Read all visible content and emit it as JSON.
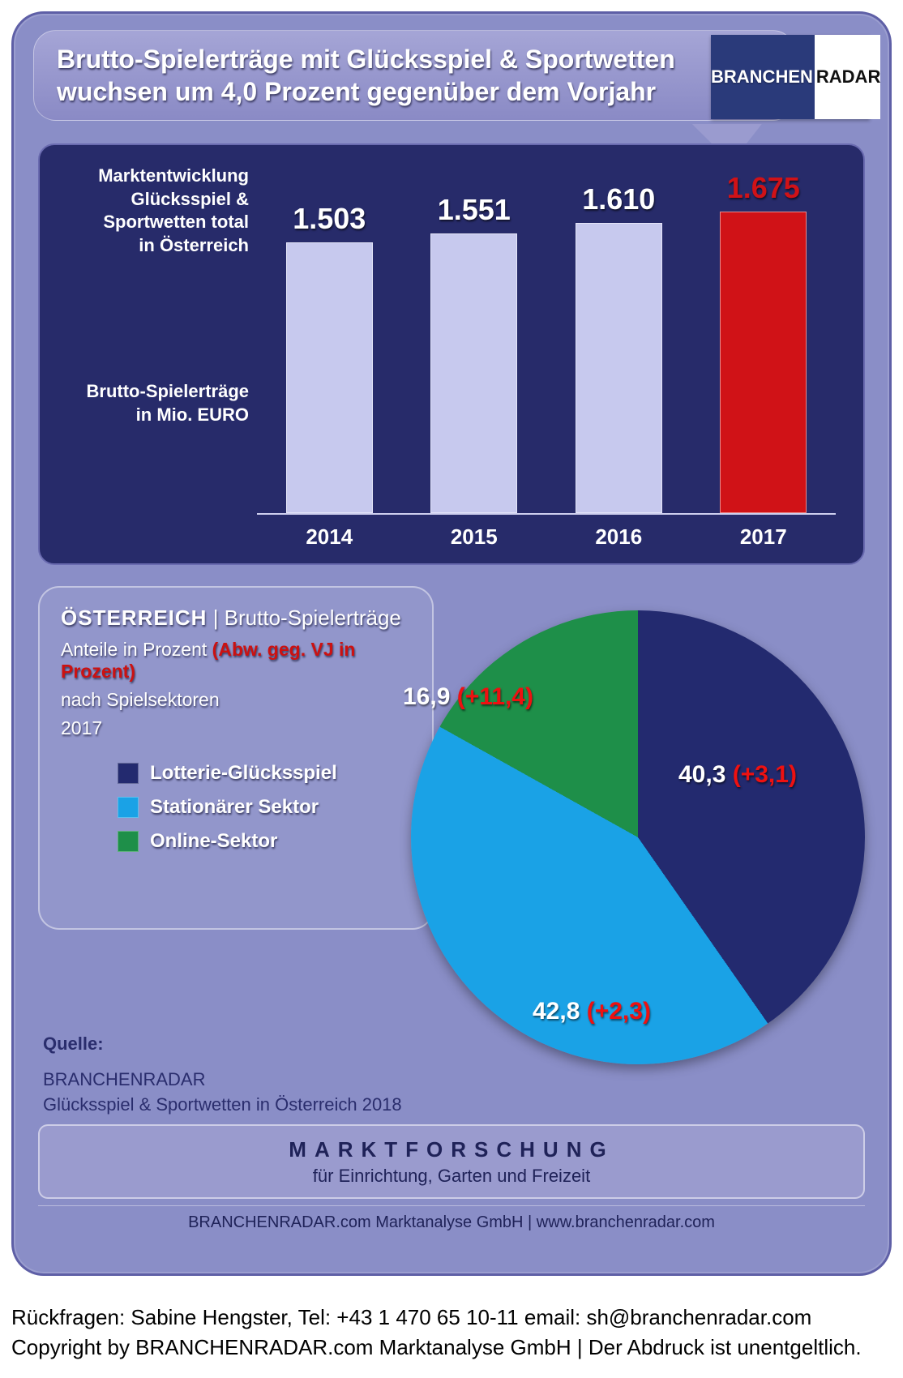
{
  "colors": {
    "card_bg": "#8a8ec7",
    "panel_bg": "#272b6a",
    "bar_normal": "#c7c9ee",
    "bar_highlight": "#d01217",
    "text_white": "#ffffff",
    "text_red": "#d01217",
    "pie_lottery": "#232a6f",
    "pie_stationary": "#1aa2e6",
    "pie_online": "#1e8f49"
  },
  "header": {
    "text": "Brutto-Spielerträge mit  Glücksspiel & Sportwetten\nwuchsen um 4,0 Prozent gegenüber dem Vorjahr",
    "fontsize": 32
  },
  "logo": {
    "left": "BRANCHEN",
    "right": "RADAR"
  },
  "bar_chart": {
    "type": "bar",
    "left_label_top": "Marktentwicklung\nGlücksspiel &\nSportwetten total\nin Österreich",
    "left_label_bottom": "Brutto-Spielerträge\nin Mio. EURO",
    "categories": [
      "2014",
      "2015",
      "2016",
      "2017"
    ],
    "values": [
      1503,
      1551,
      1610,
      1675
    ],
    "value_labels": [
      "1.503",
      "1.551",
      "1.610",
      "1.675"
    ],
    "highlight_index": 3,
    "ylim": [
      0,
      1800
    ],
    "bar_color": "#c7c9ee",
    "highlight_color": "#d01217",
    "value_label_fontsize": 36,
    "value_label_color_normal": "#ffffff",
    "value_label_color_highlight": "#d01217",
    "axis_fontsize": 26
  },
  "pie_chart": {
    "type": "pie",
    "title_country": "ÖSTERREICH",
    "title_rest": " | Brutto-Spielerträge",
    "subtitle_line1a": "Anteile in Prozent  ",
    "subtitle_line1b": "(Abw. geg. VJ in Prozent)",
    "subtitle_line2": "nach Spielsektoren",
    "year": "2017",
    "slices": [
      {
        "label": "Lotterie-Glücksspiel",
        "value": 40.3,
        "delta": "+3,1",
        "color": "#232a6f"
      },
      {
        "label": "Stationärer Sektor",
        "value": 42.8,
        "delta": "+2,3",
        "color": "#1aa2e6"
      },
      {
        "label": "Online-Sektor",
        "value": 16.9,
        "delta": "+11,4",
        "color": "#1e8f49"
      }
    ],
    "label_fontsize": 30,
    "slice_labels": {
      "lottery": {
        "value": "40,3",
        "delta": "(+3,1)"
      },
      "stationary": {
        "value": "42,8",
        "delta": "(+2,3)"
      },
      "online": {
        "value": "16,9",
        "delta": "(+11,4)"
      }
    }
  },
  "source": {
    "label": "Quelle:",
    "line1": "BRANCHENRADAR",
    "line2": "Glücksspiel & Sportwetten in Österreich 2018"
  },
  "footer": {
    "line1": "MARKTFORSCHUNG",
    "line2": "für  Einrichtung, Garten und Freizeit",
    "credit": "BRANCHENRADAR.com Marktanalyse GmbH | www.branchenradar.com"
  },
  "below": {
    "line1": "Rückfragen: Sabine Hengster, Tel: +43 1 470 65 10-11 email: sh@branchenradar.com",
    "line2": "Copyright by BRANCHENRADAR.com  Marktanalyse GmbH | Der Abdruck ist unentgeltlich."
  }
}
